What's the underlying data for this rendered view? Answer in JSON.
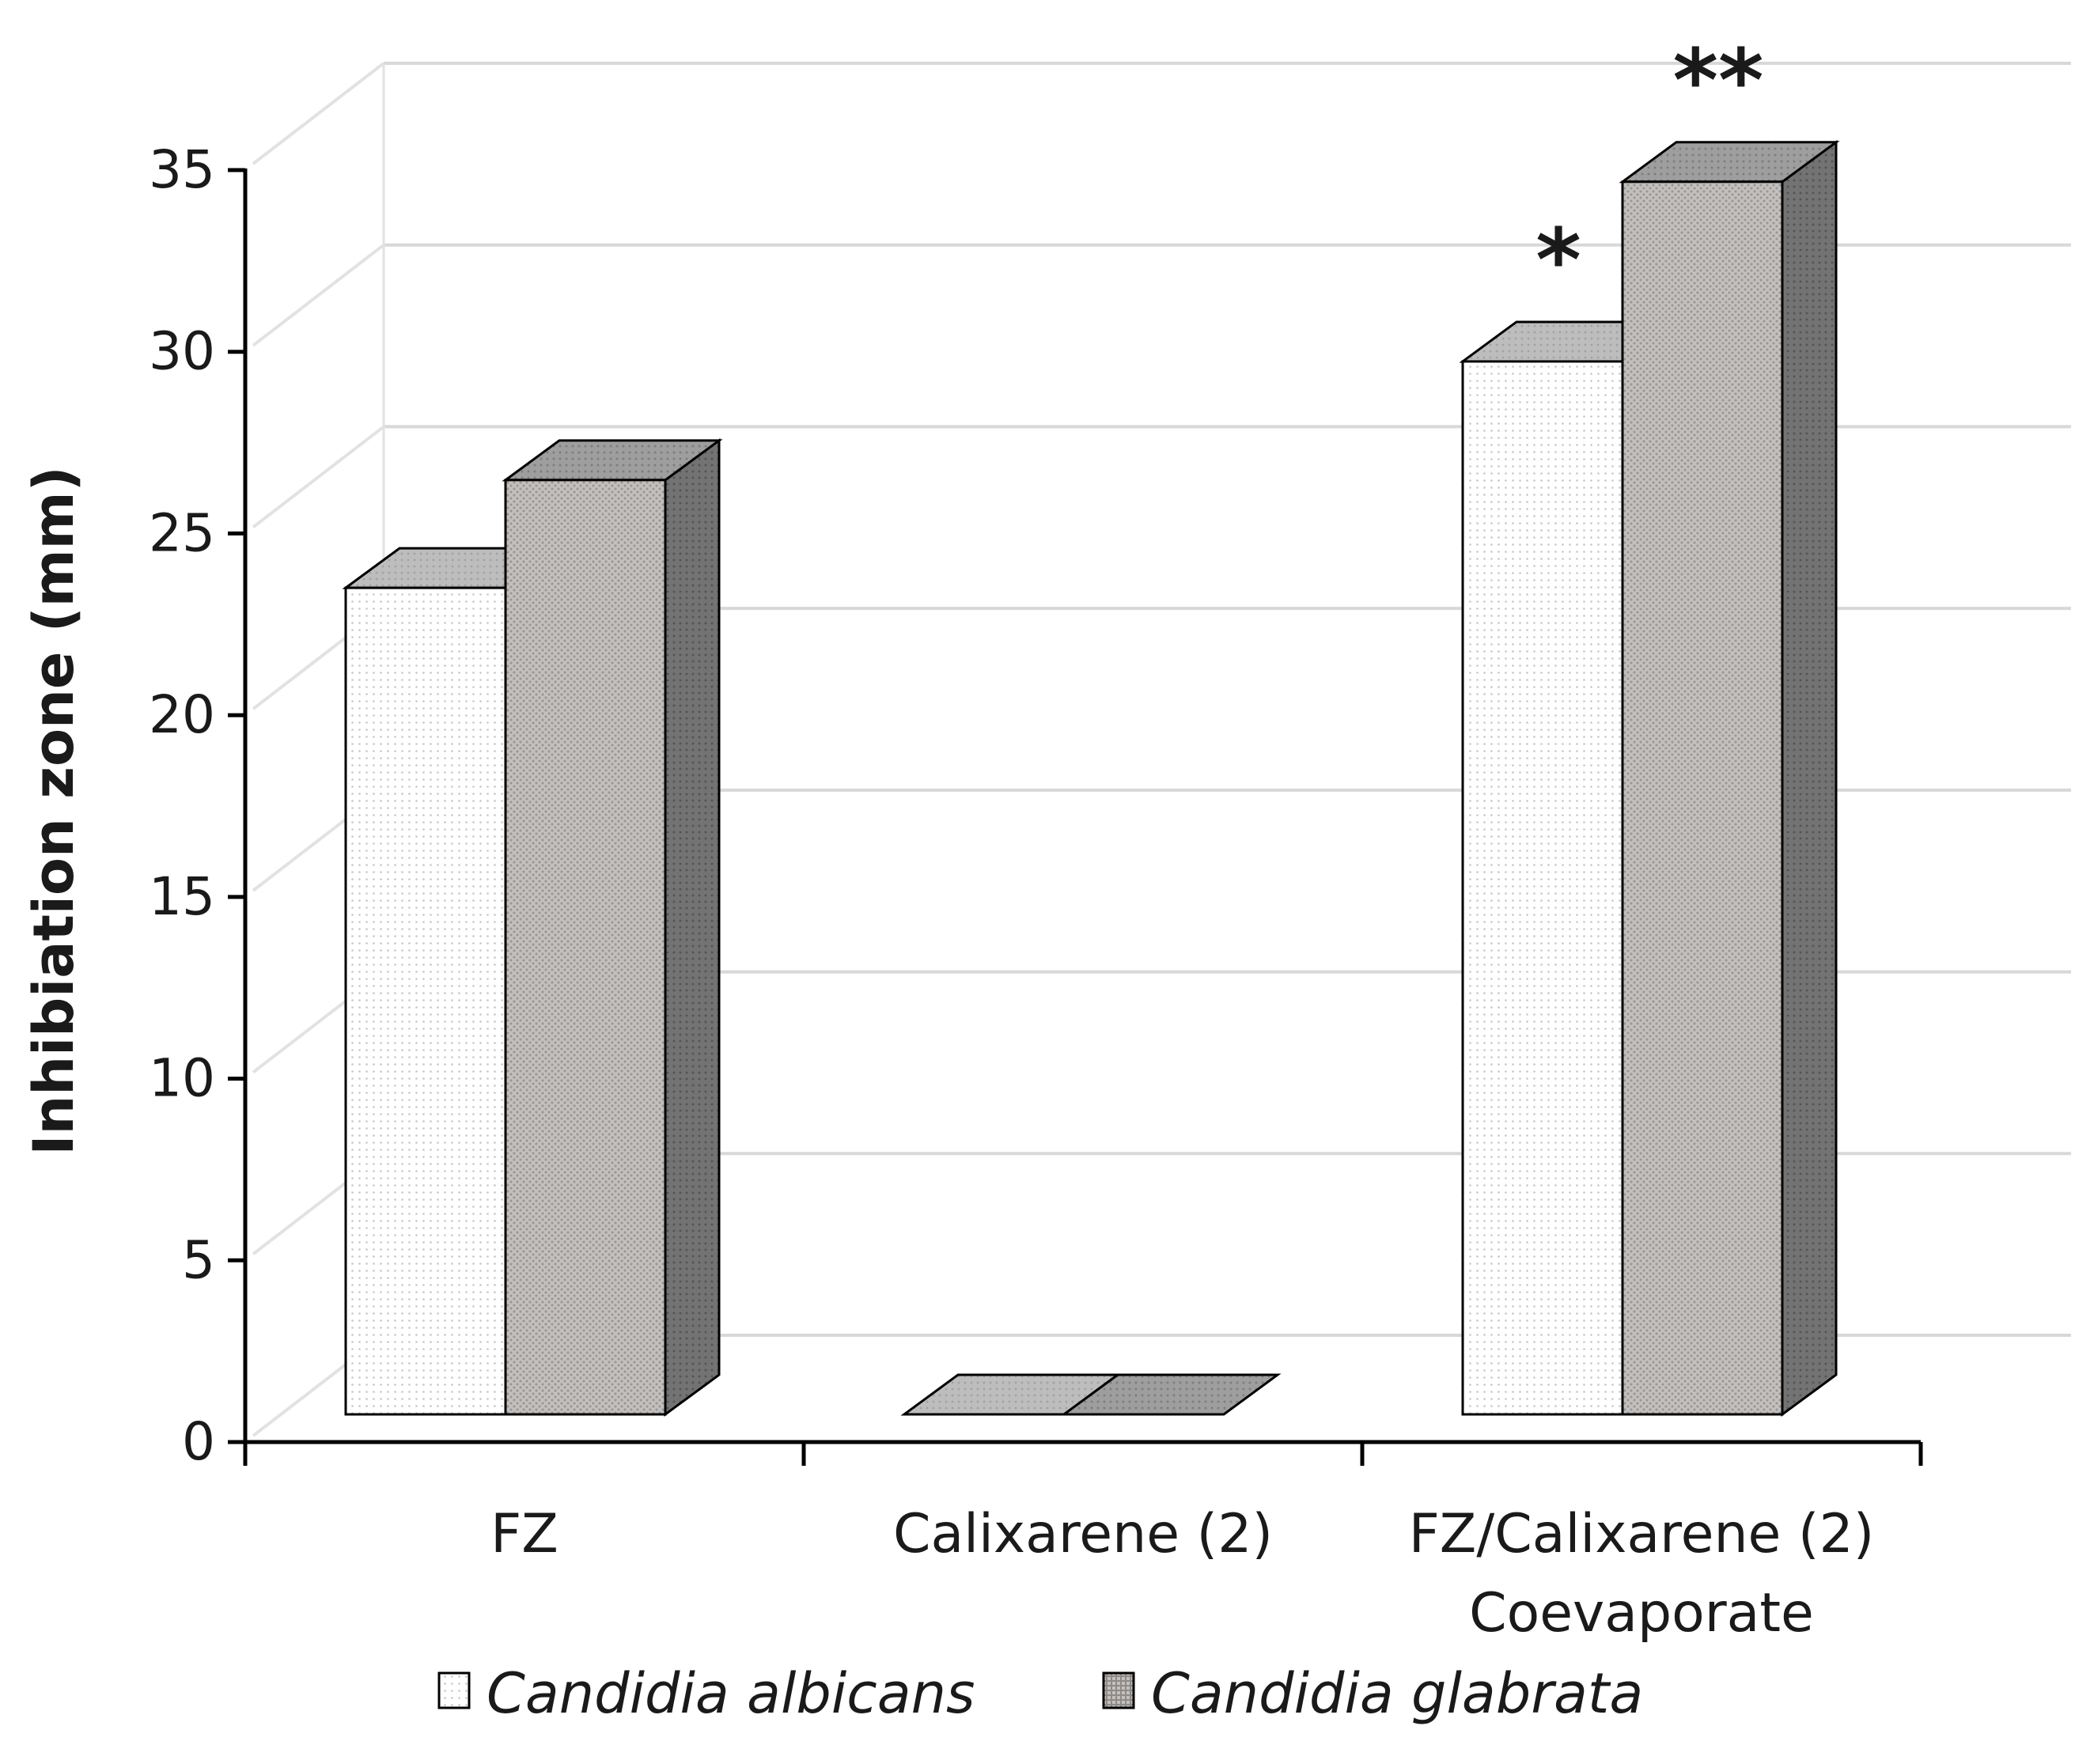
{
  "chart_data": {
    "type": "bar",
    "style": "3d-clustered-column",
    "categories": [
      [
        "FZ"
      ],
      [
        "Calixarene (2)"
      ],
      [
        "FZ/Calixarene (2)",
        "Coevaporate"
      ]
    ],
    "series": [
      {
        "name": "Candidia albicans",
        "values": [
          23,
          0,
          29.3
        ],
        "annotations": [
          "",
          "",
          "*"
        ],
        "color": "#ffffff",
        "pattern": "fine-dots"
      },
      {
        "name": "Candidia glabrata",
        "values": [
          26,
          0,
          34.3
        ],
        "annotations": [
          "",
          "",
          "**"
        ],
        "color": "#c4c0bd",
        "pattern": "dense-dots"
      }
    ],
    "ylabel": "Inhibiation zone (mm)",
    "xlabel": "",
    "title": "",
    "ylim": [
      0,
      35
    ],
    "yticks": [
      "0",
      "5",
      "10",
      "15",
      "20",
      "25",
      "30",
      "35"
    ],
    "grid": true,
    "legend_position": "bottom",
    "colors": {
      "grid": "#d8d8d8",
      "axis": "#000000",
      "back_wall_line": "#e2e2e2",
      "glabrata_top": "#9a9a9a",
      "glabrata_side": "#6e6e6e",
      "albicans_top": "#b9b9b9"
    }
  }
}
